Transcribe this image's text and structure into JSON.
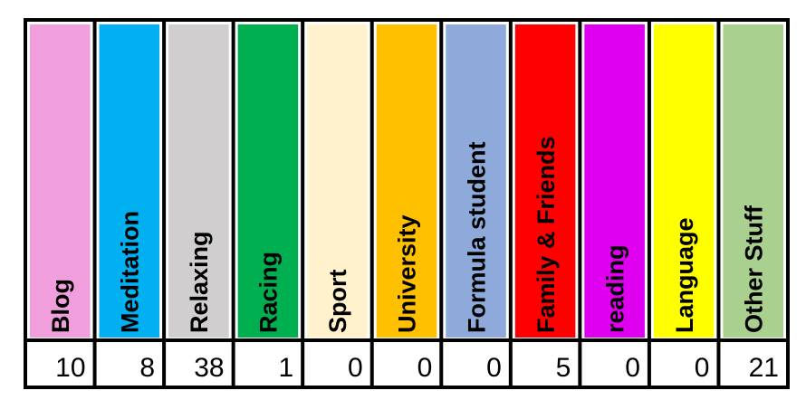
{
  "table": {
    "columns": [
      {
        "label": "Blog",
        "color": "#f09fdc",
        "value": 10
      },
      {
        "label": "Meditation",
        "color": "#00b0f0",
        "value": 8
      },
      {
        "label": "Relaxing",
        "color": "#d0cece",
        "value": 38
      },
      {
        "label": "Racing",
        "color": "#00b050",
        "value": 1
      },
      {
        "label": "Sport",
        "color": "#fff2cc",
        "value": 0
      },
      {
        "label": "University",
        "color": "#ffc000",
        "value": 0
      },
      {
        "label": "Formula student",
        "color": "#8eaadb",
        "value": 0
      },
      {
        "label": "Family & Friends",
        "color": "#ff0000",
        "value": 5
      },
      {
        "label": "reading",
        "color": "#e000f0",
        "value": 0
      },
      {
        "label": "Language",
        "color": "#ffff00",
        "value": 0
      },
      {
        "label": "Other Stuff",
        "color": "#a9d08e",
        "value": 21
      }
    ]
  }
}
